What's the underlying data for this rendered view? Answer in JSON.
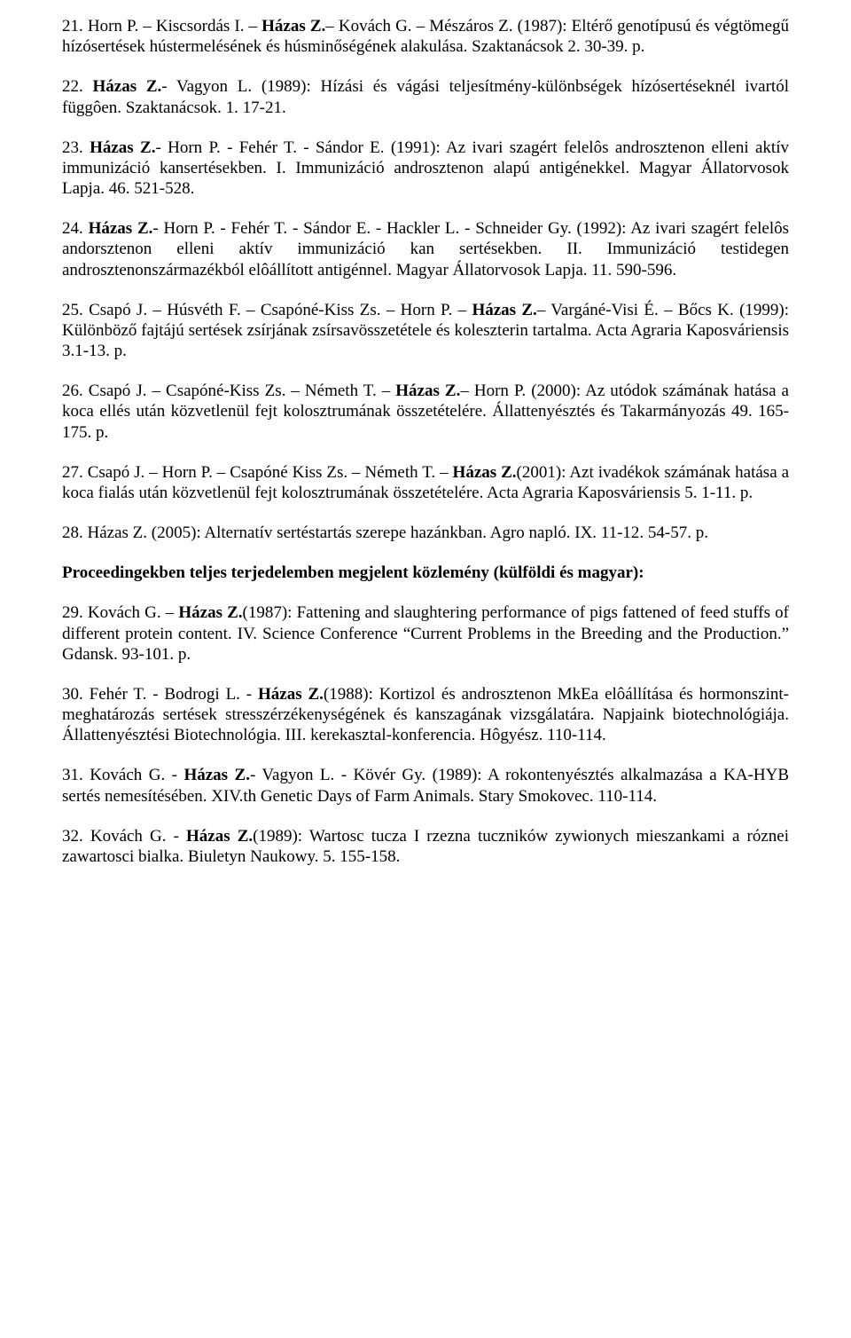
{
  "refs": [
    {
      "num": "21.",
      "pre": " Horn P. – Kiscsordás I. – ",
      "bold": "Házas Z.",
      "post": "– Kovách G. – Mészáros Z. (1987): Eltérő genotípusú és végtömegű hízósertések hústermelésének és húsminőségének alakulása. Szaktanácsok 2. 30-39. p."
    },
    {
      "num": "22.",
      "pre": " ",
      "bold": "Házas Z.",
      "post": "- Vagyon L. (1989): Hízási és vágási teljesítmény-különbségek hízósertéseknél ivartól függôen. Szaktanácsok. 1. 17-21."
    },
    {
      "num": "23.",
      "pre": " ",
      "bold": "Házas Z.",
      "post": "- Horn P. - Fehér T. - Sándor E. (1991): Az ivari szagért felelôs androsztenon elleni aktív immunizáció kansertésekben. I. Immunizáció androsztenon alapú antigénekkel. Magyar Állatorvosok Lapja. 46. 521-528."
    },
    {
      "num": "24.",
      "pre": " ",
      "bold": "Házas Z.",
      "post": "- Horn P. - Fehér T. - Sándor E. - Hackler L. - Schneider Gy. (1992): Az ivari szagért felelôs andorsztenon elleni aktív immunizáció kan sertésekben. II. Immunizáció testidegen androsztenonszármazékból elôállított antigénnel. Magyar Állatorvosok Lapja. 11. 590-596."
    },
    {
      "num": "25.",
      "pre": " Csapó J. – Húsvéth F. – Csapóné-Kiss Zs. – Horn P. – ",
      "bold": "Házas Z.",
      "post": "– Vargáné-Visi É. – Bőcs K. (1999): Különböző fajtájú sertések zsírjának zsírsavösszetétele és koleszterin tartalma. Acta Agraria Kaposváriensis 3.1-13. p."
    },
    {
      "num": "26.",
      "pre": " Csapó J. – Csapóné-Kiss Zs. – Németh T. – ",
      "bold": "Házas Z.",
      "post": "– Horn P. (2000): Az utódok számának hatása a koca ellés után közvetlenül fejt kolosztrumának összetételére. Állattenyésztés és Takarmányozás 49. 165-175. p."
    },
    {
      "num": "27.",
      "pre": " Csapó J. – Horn P. – Csapóné Kiss Zs. – Németh T. – ",
      "bold": "Házas Z.",
      "post": "(2001): Azt ivadékok számának hatása a koca fialás után közvetlenül fejt kolosztrumának összetételére. Acta Agraria Kaposváriensis 5. 1-11. p."
    },
    {
      "num": "28.",
      "pre": " Házas Z. (2005): Alternatív sertéstartás szerepe hazánkban. Agro napló. IX. 11-12. 54-57. p.",
      "bold": "",
      "post": ""
    }
  ],
  "heading": "Proceedingekben teljes terjedelemben megjelent közlemény (külföldi és magyar):",
  "refs2": [
    {
      "num": "29.",
      "pre": " Kovách G. – ",
      "bold": "Házas Z.",
      "post": "(1987): Fattening and slaughtering performance of pigs fattened of feed stuffs of different protein content. IV. Science Conference “Current Problems in the Breeding and the Production.” Gdansk. 93-101. p."
    },
    {
      "num": "30.",
      "pre": " Fehér T. - Bodrogi L. - ",
      "bold": "Házas Z.",
      "post": "(1988): Kortizol és androsztenon MkEa elôállítása és hormonszint-meghatározás sertések stresszérzékenységének és kanszagának vizsgálatára. Napjaink biotechnológiája. Állattenyésztési Biotechnológia. III. kerekasztal-konferencia. Hôgyész. 110-114."
    },
    {
      "num": "31.",
      "pre": " Kovách G. - ",
      "bold": "Házas Z.",
      "post": "- Vagyon L. - Kövér Gy. (1989): A rokontenyésztés alkalmazása a KA-HYB sertés nemesítésében. XIV.th Genetic Days of Farm Animals. Stary Smokovec. 110-114."
    },
    {
      "num": "32.",
      "pre": " Kovách G. - ",
      "bold": "Házas Z.",
      "post": "(1989): Wartosc tucza I rzezna tuczników zywionych mieszankami a róznei zawartosci bialka. Biuletyn Naukowy. 5. 155-158."
    }
  ]
}
